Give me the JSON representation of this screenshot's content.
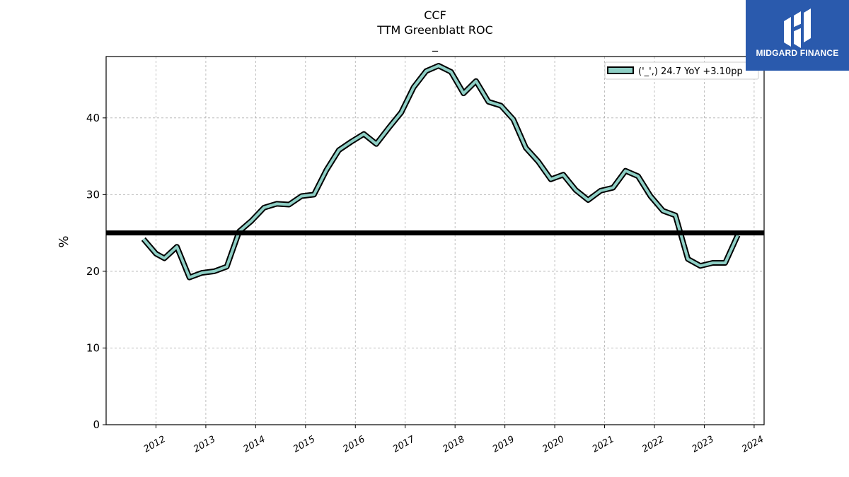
{
  "chart_data": {
    "type": "line",
    "title_lines": [
      "CCF",
      "TTM Greenblatt ROC",
      "_"
    ],
    "ylabel": "%",
    "ylim": [
      0,
      48
    ],
    "xlim": [
      2011.0,
      2024.2
    ],
    "yticks": [
      0,
      10,
      20,
      30,
      40
    ],
    "xticks": [
      2012,
      2013,
      2014,
      2015,
      2016,
      2017,
      2018,
      2019,
      2020,
      2021,
      2022,
      2023,
      2024
    ],
    "grid": true,
    "legend_position": "top-right",
    "colors": {
      "series": "#8ecfc5",
      "outline": "#000000",
      "reference": "#000000"
    },
    "series": [
      {
        "name": "('_',) 24.7 YoY +3.10pp",
        "x": [
          2011.75,
          2012.0,
          2012.17,
          2012.42,
          2012.67,
          2012.92,
          2013.17,
          2013.42,
          2013.67,
          2013.92,
          2014.17,
          2014.42,
          2014.67,
          2014.92,
          2015.17,
          2015.42,
          2015.67,
          2015.92,
          2016.17,
          2016.42,
          2016.67,
          2016.92,
          2017.17,
          2017.42,
          2017.67,
          2017.92,
          2018.17,
          2018.42,
          2018.67,
          2018.92,
          2019.17,
          2019.42,
          2019.67,
          2019.92,
          2020.17,
          2020.42,
          2020.67,
          2020.92,
          2021.17,
          2021.42,
          2021.67,
          2021.92,
          2022.17,
          2022.42,
          2022.67,
          2022.92,
          2023.17,
          2023.42,
          2023.67
        ],
        "values": [
          24.2,
          22.3,
          21.7,
          23.2,
          19.2,
          19.8,
          20.0,
          20.6,
          25.2,
          26.6,
          28.3,
          28.8,
          28.7,
          29.8,
          30.0,
          33.2,
          35.8,
          36.9,
          37.9,
          36.6,
          38.7,
          40.7,
          44.0,
          46.1,
          46.8,
          46.0,
          43.2,
          44.8,
          42.1,
          41.6,
          39.8,
          36.1,
          34.3,
          32.0,
          32.6,
          30.6,
          29.3,
          30.5,
          30.9,
          33.1,
          32.4,
          29.8,
          27.9,
          27.3,
          21.6,
          20.7,
          21.1,
          21.1,
          24.7
        ]
      }
    ],
    "reference_line": 25.0
  },
  "logo": {
    "text": "MIDGARD FINANCE"
  }
}
